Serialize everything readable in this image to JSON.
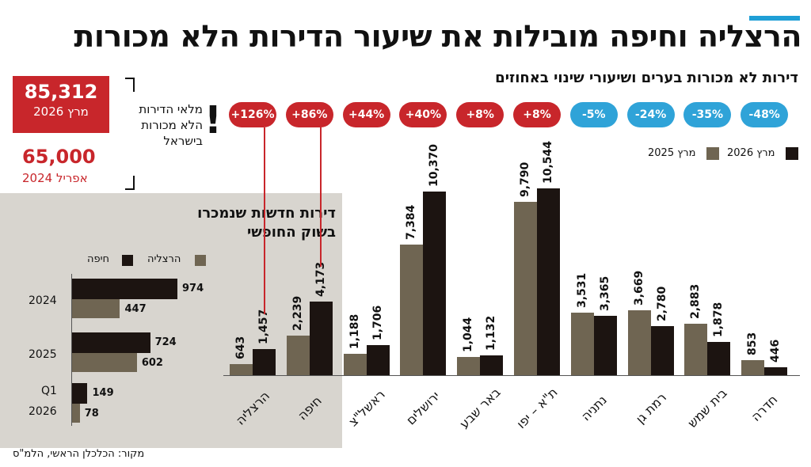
{
  "title": "הרצליה וחיפה מובילות את שיעור הדירות הלא מכורות",
  "subtitle": "דירות לא מכורות בערים ושיעורי שינוי באחוזים",
  "stat_current": {
    "value": "85,312",
    "label": "מרץ 2026"
  },
  "stat_previous": {
    "value": "65,000",
    "label": "אפריל 2024"
  },
  "vacant_text": "מלאי הדירות הלא מכורות בישראל",
  "exclamation": "!",
  "legend": {
    "a": "מרץ 2026",
    "b": "מרץ 2025"
  },
  "colors": {
    "dark": "#1c1411",
    "olive": "#6f6552",
    "red": "#c8262b",
    "blue": "#2fa3d8",
    "panel": "#d8d5cf",
    "accent": "#1f9fd6"
  },
  "panel": {
    "title_line1": "דירות חדשות שנמכרו",
    "title_line2": "בשוק החופשי",
    "legend_haifa": "חיפה",
    "legend_herzliya": "הרצליה"
  },
  "source": "מקור: הכלכלן הראשי, הלמ\"ס",
  "chart_data": [
    {
      "type": "bar",
      "title": "דירות לא מכורות בערים ושיעורי שינוי באחוזים",
      "categories": [
        "הרצליה",
        "חיפה",
        "ראשל\"צ",
        "ירושלים",
        "באר שבע",
        "ת\"א – יפו",
        "נתניה",
        "רמת גן",
        "בית שמש",
        "חדרה"
      ],
      "series": [
        {
          "name": "מרץ 2025",
          "values": [
            643,
            2239,
            1188,
            7384,
            1044,
            9790,
            3531,
            3669,
            2883,
            853
          ]
        },
        {
          "name": "מרץ 2026",
          "values": [
            1457,
            4173,
            1706,
            10370,
            1132,
            10544,
            3365,
            2780,
            1878,
            446
          ]
        }
      ],
      "value_labels": {
        "a": [
          "643",
          "2,239",
          "1,188",
          "7,384",
          "1,044",
          "9,790",
          "3,531",
          "3,669",
          "2,883",
          "853"
        ],
        "b": [
          "1,457",
          "4,173",
          "1,706",
          "10,370",
          "1,132",
          "10,544",
          "3,365",
          "2,780",
          "1,878",
          "446"
        ]
      },
      "change_pct": [
        126,
        86,
        44,
        40,
        8,
        8,
        -5,
        -24,
        -35,
        -48
      ],
      "change_labels": [
        "+126%",
        "+86%",
        "+44%",
        "+40%",
        "+8%",
        "+8%",
        "-5%",
        "-24%",
        "-35%",
        "-48%"
      ],
      "legend": [
        "מרץ 2026",
        "מרץ 2025"
      ]
    },
    {
      "type": "bar",
      "title": "דירות חדשות שנמכרו בשוק החופשי",
      "categories": [
        "2024",
        "2025",
        "Q1 2026"
      ],
      "category_labels": [
        [
          "2024"
        ],
        [
          "2025"
        ],
        [
          "Q1",
          "2026"
        ]
      ],
      "series": [
        {
          "name": "חיפה",
          "values": [
            974,
            724,
            149
          ]
        },
        {
          "name": "הרצליה",
          "values": [
            447,
            602,
            78
          ]
        }
      ],
      "legend": [
        "חיפה",
        "הרצליה"
      ]
    }
  ]
}
